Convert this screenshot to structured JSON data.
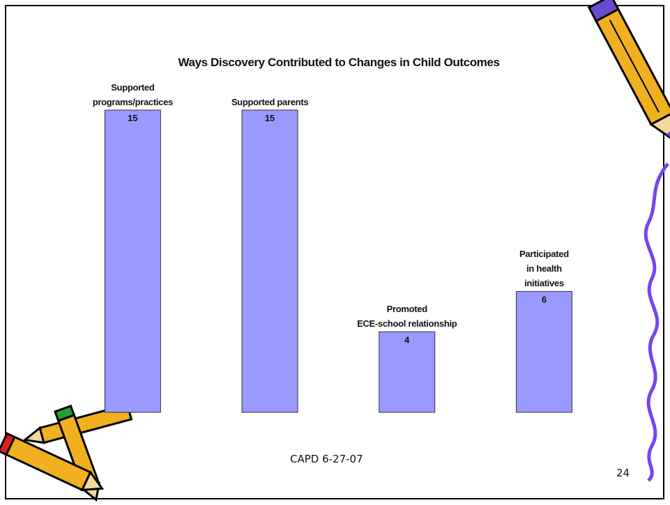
{
  "chart_data": {
    "type": "bar",
    "title": "Ways Discovery Contributed to Changes in Child Outcomes",
    "categories": [
      "Supported\nprograms/practices",
      "Supported parents",
      "Promoted\nECE-school relationship",
      "Participated\nin health\ninitiatives"
    ],
    "values": [
      15,
      15,
      4,
      6
    ],
    "color": "#9999ff"
  },
  "footer": "CAPD 6-27-07",
  "page_number": "24"
}
